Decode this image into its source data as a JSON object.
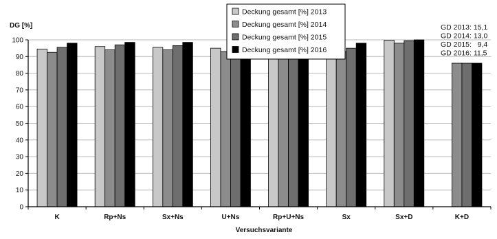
{
  "chart_data": {
    "type": "bar",
    "ylabel": "DG [%]",
    "xlabel": "Versuchsvariante",
    "ylim": [
      0,
      100
    ],
    "yticks": [
      0,
      10,
      20,
      30,
      40,
      50,
      60,
      70,
      80,
      90,
      100
    ],
    "grid": "horizontal",
    "legend_position": "top-center",
    "categories": [
      "K",
      "Rp+Ns",
      "Sx+Ns",
      "U+Ns",
      "Rp+U+Ns",
      "Sx",
      "Sx+D",
      "K+D"
    ],
    "series": [
      {
        "name": "Deckung gesamt [%] 2013",
        "color": "#c8c8c8",
        "values": [
          94.5,
          96.0,
          95.5,
          95.0,
          96.0,
          97.0,
          99.8,
          null
        ]
      },
      {
        "name": "Deckung gesamt [%] 2014",
        "color": "#8c8c8c",
        "values": [
          92.5,
          94.0,
          94.0,
          93.0,
          94.0,
          93.0,
          98.0,
          86.0
        ]
      },
      {
        "name": "Deckung gesamt [%] 2015",
        "color": "#6e6e6e",
        "values": [
          95.5,
          97.0,
          96.5,
          96.0,
          96.0,
          95.0,
          99.5,
          86.0
        ]
      },
      {
        "name": "Deckung gesamt [%] 2016",
        "color": "#000000",
        "values": [
          98.0,
          98.5,
          98.5,
          97.5,
          97.0,
          98.0,
          100.0,
          86.0
        ]
      }
    ],
    "annotations": [
      "GD 2013: 15,1",
      "GD 2014: 13,0",
      "GD 2015:   9,4",
      "GD 2016: 11,5"
    ]
  }
}
